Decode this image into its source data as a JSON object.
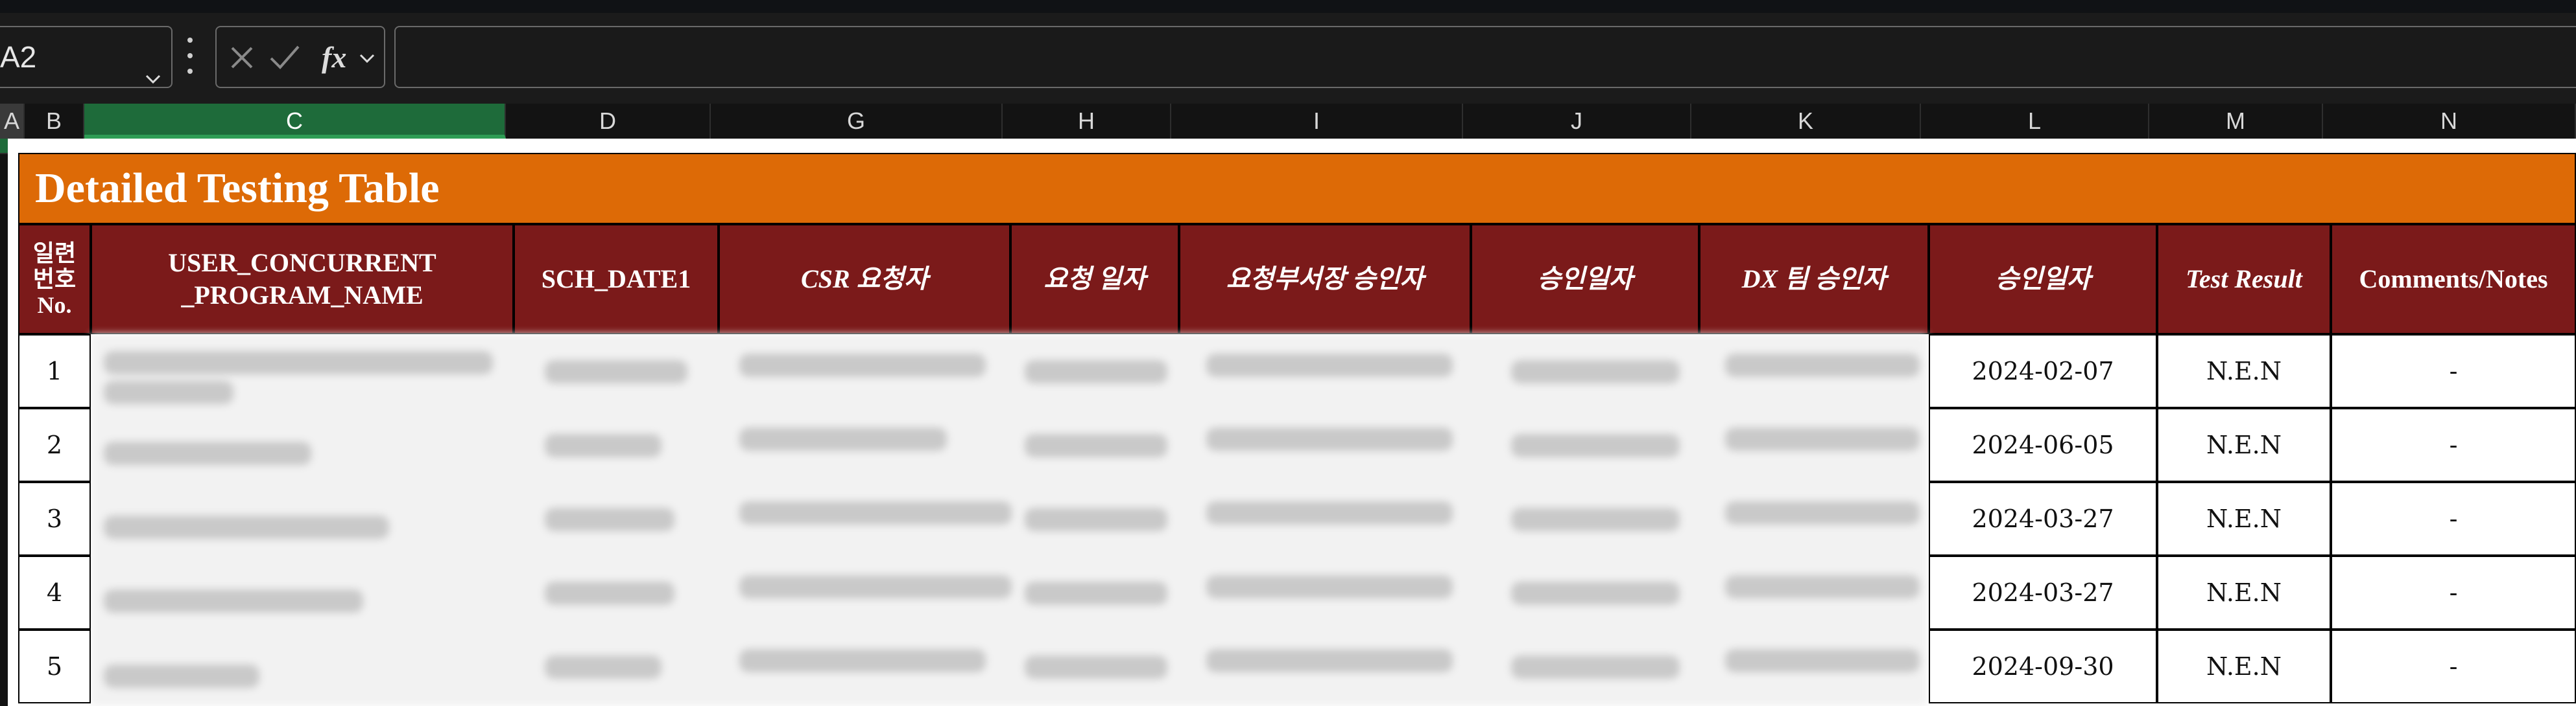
{
  "name_box": {
    "value": "A2"
  },
  "formula_bar": {
    "value": ""
  },
  "column_headers": [
    "A",
    "B",
    "C",
    "D",
    "G",
    "H",
    "I",
    "J",
    "K",
    "L",
    "M",
    "N"
  ],
  "selected_column": "C",
  "table": {
    "title": "Detailed Testing Table",
    "headers": {
      "no": "일련\n번호\nNo.",
      "program": "USER_CONCURRENT\n_PROGRAM_NAME",
      "sch_date": "SCH_DATE1",
      "csr": "CSR 요청자",
      "req_date": "요청 일자",
      "dept_approver": "요청부서장 승인자",
      "approve_date1": "승인일자",
      "dx_approver": "DX 팀 승인자",
      "approve_date2": "승인일자",
      "test_result": "Test Result",
      "comments": "Comments/Notes"
    },
    "rows": [
      {
        "no": "1",
        "approve_date": "2024-02-07",
        "test_result": "N.E.N",
        "comments": "-"
      },
      {
        "no": "2",
        "approve_date": "2024-06-05",
        "test_result": "N.E.N",
        "comments": "-"
      },
      {
        "no": "3",
        "approve_date": "2024-03-27",
        "test_result": "N.E.N",
        "comments": "-"
      },
      {
        "no": "4",
        "approve_date": "2024-03-27",
        "test_result": "N.E.N",
        "comments": "-"
      },
      {
        "no": "5",
        "approve_date": "2024-09-30",
        "test_result": "N.E.N",
        "comments": "-"
      }
    ]
  },
  "colors": {
    "banner": "#dd6a06",
    "header_fill": "#7b1a1a",
    "selected_col": "#1e6b3a"
  }
}
